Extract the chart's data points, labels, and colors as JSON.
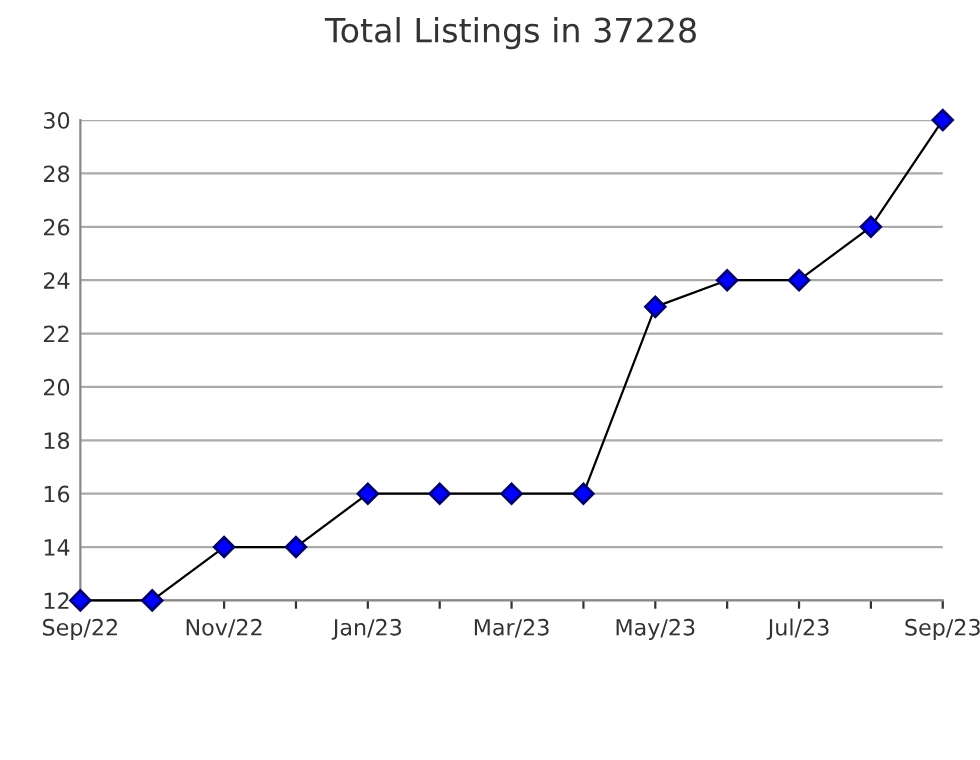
{
  "chart_data": {
    "type": "line",
    "title": "Total Listings in 37228",
    "categories": [
      "Sep/22",
      null,
      "Nov/22",
      null,
      "Jan/23",
      null,
      "Mar/23",
      null,
      "May/23",
      null,
      "Jul/23",
      null,
      "Sep/23"
    ],
    "series": [
      {
        "color": "#0000ff",
        "values": [
          12,
          12,
          14,
          14,
          16,
          16,
          16,
          16,
          23,
          24,
          24,
          26,
          30
        ]
      }
    ],
    "ylim": [
      12,
      30
    ],
    "yticks": [
      12,
      14,
      16,
      18,
      20,
      22,
      24,
      26,
      28,
      30
    ],
    "grid": "y",
    "legend": false,
    "marker": "diamond",
    "line_style": "solid"
  }
}
